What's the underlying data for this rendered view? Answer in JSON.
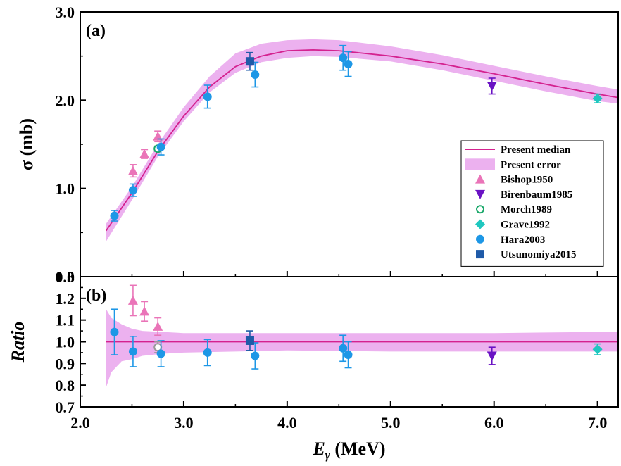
{
  "chart_data": [
    {
      "id": "a",
      "type": "scatter",
      "panel_label": "(a)",
      "ylabel": "σ (mb)",
      "xlim": [
        2.0,
        7.2
      ],
      "ylim": [
        0.0,
        3.0
      ],
      "yticks": [
        0.0,
        1.0,
        2.0,
        3.0
      ],
      "ytick_labels": [
        "0.0",
        "1.0",
        "2.0",
        "3.0"
      ],
      "legend_position": "lower-right",
      "median": {
        "name": "Present median",
        "color": "#d4228f",
        "x": [
          2.25,
          2.5,
          2.75,
          3.0,
          3.25,
          3.5,
          3.75,
          4.0,
          4.25,
          4.5,
          5.0,
          5.5,
          6.0,
          6.5,
          7.0,
          7.2
        ],
        "y": [
          0.52,
          0.95,
          1.42,
          1.82,
          2.15,
          2.38,
          2.5,
          2.56,
          2.57,
          2.56,
          2.5,
          2.41,
          2.3,
          2.18,
          2.07,
          2.03
        ]
      },
      "band": {
        "name": "Present error",
        "color": "#ecb1ef",
        "x": [
          2.25,
          2.5,
          2.75,
          3.0,
          3.25,
          3.5,
          3.75,
          4.0,
          4.25,
          4.5,
          5.0,
          5.5,
          6.0,
          6.5,
          7.0,
          7.2
        ],
        "upper": [
          0.6,
          1.02,
          1.5,
          1.92,
          2.27,
          2.53,
          2.64,
          2.68,
          2.69,
          2.68,
          2.61,
          2.51,
          2.39,
          2.27,
          2.16,
          2.12
        ],
        "lower": [
          0.4,
          0.87,
          1.36,
          1.76,
          2.09,
          2.31,
          2.43,
          2.48,
          2.5,
          2.49,
          2.44,
          2.34,
          2.22,
          2.1,
          1.99,
          1.96
        ]
      },
      "series": [
        {
          "name": "Bishop1950",
          "marker": "triangle-up",
          "color": "#ea74b8",
          "points": [
            {
              "x": 2.51,
              "y": 1.2,
              "err": 0.07
            },
            {
              "x": 2.62,
              "y": 1.39,
              "err": 0.05
            },
            {
              "x": 2.75,
              "y": 1.59,
              "err": 0.06
            }
          ]
        },
        {
          "name": "Birenbaum1985",
          "marker": "triangle-down",
          "color": "#6a12c4",
          "points": [
            {
              "x": 5.98,
              "y": 2.16,
              "err": 0.09
            }
          ]
        },
        {
          "name": "Morch1989",
          "marker": "circle-open",
          "color": "#1aa86a",
          "points": [
            {
              "x": 2.75,
              "y": 1.45,
              "err": 0.03
            }
          ]
        },
        {
          "name": "Grave1992",
          "marker": "diamond",
          "color": "#1fc7bf",
          "points": [
            {
              "x": 7.0,
              "y": 2.02,
              "err": 0.05
            }
          ]
        },
        {
          "name": "Hara2003",
          "marker": "circle",
          "color": "#1d97e6",
          "points": [
            {
              "x": 2.33,
              "y": 0.69,
              "err": 0.06
            },
            {
              "x": 2.51,
              "y": 0.98,
              "err": 0.07
            },
            {
              "x": 2.78,
              "y": 1.47,
              "err": 0.09
            },
            {
              "x": 3.23,
              "y": 2.04,
              "err": 0.13
            },
            {
              "x": 3.69,
              "y": 2.29,
              "err": 0.14
            },
            {
              "x": 4.54,
              "y": 2.48,
              "err": 0.14
            },
            {
              "x": 4.59,
              "y": 2.41,
              "err": 0.14
            }
          ]
        },
        {
          "name": "Utsunomiya2015",
          "marker": "square",
          "color": "#1f5aa8",
          "points": [
            {
              "x": 3.64,
              "y": 2.44,
              "err": 0.1
            }
          ]
        }
      ],
      "legend": [
        "Present median",
        "Present error",
        "Bishop1950",
        "Birenbaum1985",
        "Morch1989",
        "Grave1992",
        "Hara2003",
        "Utsunomiya2015"
      ]
    },
    {
      "id": "b",
      "type": "scatter",
      "panel_label": "(b)",
      "ylabel": "Ratio",
      "xlabel_main": "E",
      "xlabel_sub": "γ",
      "xlabel_unit": " (MeV)",
      "xlim": [
        2.0,
        7.2
      ],
      "ylim": [
        0.7,
        1.3
      ],
      "xticks": [
        2.0,
        3.0,
        4.0,
        5.0,
        6.0,
        7.0
      ],
      "xtick_labels": [
        "2.0",
        "3.0",
        "4.0",
        "5.0",
        "6.0",
        "7.0"
      ],
      "yticks": [
        0.7,
        0.8,
        0.9,
        1.0,
        1.1,
        1.2,
        1.3
      ],
      "ytick_labels": [
        "0.7",
        "0.8",
        "0.9",
        "1.0",
        "1.1",
        "1.2",
        "1.3"
      ],
      "median": {
        "color": "#d4228f",
        "x": [
          2.25,
          7.2
        ],
        "y": [
          1.0,
          1.0
        ]
      },
      "band": {
        "color": "#ecb1ef",
        "x": [
          2.25,
          2.3,
          2.4,
          2.5,
          2.6,
          2.8,
          3.0,
          3.5,
          4.0,
          5.0,
          6.0,
          7.0,
          7.2
        ],
        "upper": [
          1.15,
          1.11,
          1.08,
          1.06,
          1.05,
          1.045,
          1.04,
          1.04,
          1.04,
          1.04,
          1.04,
          1.045,
          1.045
        ],
        "lower": [
          0.79,
          0.86,
          0.91,
          0.92,
          0.935,
          0.945,
          0.95,
          0.955,
          0.96,
          0.955,
          0.955,
          0.955,
          0.955
        ]
      },
      "series": [
        {
          "name": "Bishop1950",
          "marker": "triangle-up",
          "color": "#ea74b8",
          "points": [
            {
              "x": 2.51,
              "y": 1.19,
              "err": 0.07
            },
            {
              "x": 2.62,
              "y": 1.14,
              "err": 0.045
            },
            {
              "x": 2.75,
              "y": 1.07,
              "err": 0.04
            }
          ]
        },
        {
          "name": "Birenbaum1985",
          "marker": "triangle-down",
          "color": "#6a12c4",
          "points": [
            {
              "x": 5.98,
              "y": 0.935,
              "err": 0.04
            }
          ]
        },
        {
          "name": "Morch1989",
          "marker": "circle-open",
          "color": "#999999",
          "points": [
            {
              "x": 2.75,
              "y": 0.975,
              "err": 0.025
            }
          ]
        },
        {
          "name": "Grave1992",
          "marker": "diamond",
          "color": "#1fc7bf",
          "points": [
            {
              "x": 7.0,
              "y": 0.965,
              "err": 0.025
            }
          ]
        },
        {
          "name": "Hara2003",
          "marker": "circle",
          "color": "#1d97e6",
          "points": [
            {
              "x": 2.33,
              "y": 1.045,
              "err": 0.105
            },
            {
              "x": 2.51,
              "y": 0.955,
              "err": 0.07
            },
            {
              "x": 2.78,
              "y": 0.945,
              "err": 0.06
            },
            {
              "x": 3.23,
              "y": 0.95,
              "err": 0.06
            },
            {
              "x": 3.69,
              "y": 0.935,
              "err": 0.06
            },
            {
              "x": 4.54,
              "y": 0.97,
              "err": 0.06
            },
            {
              "x": 4.59,
              "y": 0.94,
              "err": 0.06
            }
          ]
        },
        {
          "name": "Utsunomiya2015",
          "marker": "square",
          "color": "#1f5aa8",
          "points": [
            {
              "x": 3.64,
              "y": 1.005,
              "err": 0.045
            }
          ]
        }
      ]
    }
  ]
}
